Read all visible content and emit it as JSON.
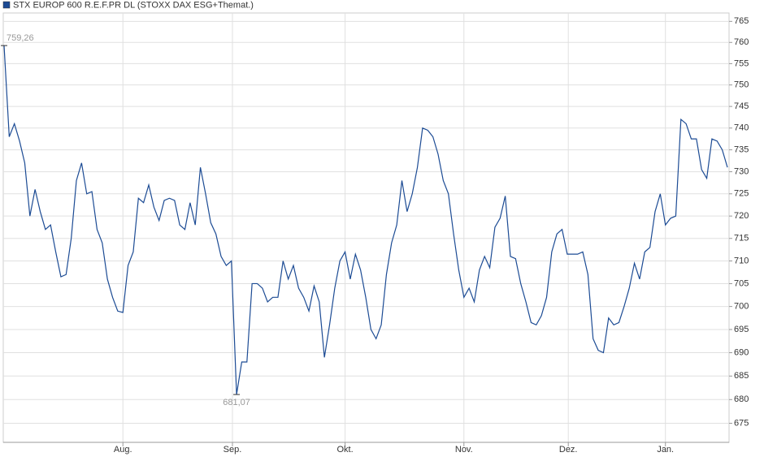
{
  "chart_data": {
    "type": "line",
    "series": [
      {
        "name": "STX EUROP 600 R.E.F.PR DL (STOXX DAX ESG+Themat.)",
        "color": "#1c4b94",
        "values": [
          759.26,
          738,
          741,
          737,
          732,
          720,
          726,
          721,
          717,
          718,
          712,
          706.5,
          707,
          715,
          728,
          732,
          725,
          725.5,
          717,
          714,
          706,
          702,
          699,
          698.7,
          709,
          712,
          724,
          723,
          727,
          722,
          719,
          723.5,
          724,
          723.5,
          718,
          717,
          723,
          718,
          731,
          725,
          718.5,
          716,
          711,
          709,
          710,
          681.07,
          688,
          688,
          705,
          705,
          704,
          701,
          702,
          702,
          710,
          706,
          709,
          704,
          702,
          699,
          704.5,
          701,
          689,
          696,
          704,
          710,
          712,
          706,
          711.5,
          708,
          702,
          695,
          693,
          696,
          707,
          714,
          718,
          728,
          721,
          725,
          731,
          740,
          739.5,
          738,
          734,
          728,
          725,
          716,
          708,
          702,
          704,
          701,
          708,
          711,
          708.5,
          717.5,
          719.5,
          724.5,
          711,
          710.5,
          705,
          701,
          696.5,
          696,
          698,
          702,
          712,
          716,
          717,
          711.5,
          711.5,
          711.5,
          712,
          707,
          693,
          690.5,
          690,
          697.5,
          696,
          696.5,
          700,
          704,
          709.5,
          706,
          712,
          713,
          721,
          725,
          718,
          719.5,
          720,
          742,
          741,
          737.5,
          737.5,
          730.5,
          728.5,
          737.5,
          737,
          735,
          731
        ],
        "value_labels": [
          "759,26",
          null,
          null,
          null,
          null,
          null,
          null,
          null,
          null,
          null,
          null,
          null,
          null,
          null,
          null,
          null,
          null,
          null,
          null,
          null,
          null,
          null,
          null,
          null,
          null,
          null,
          null,
          null,
          null,
          null,
          null,
          null,
          null,
          null,
          null,
          null,
          null,
          null,
          null,
          null,
          null,
          null,
          null,
          null,
          null,
          "681,07",
          null,
          null,
          null,
          null,
          null,
          null,
          null,
          null,
          null,
          null,
          null,
          null,
          null,
          null,
          null,
          null,
          null,
          null,
          null,
          null,
          null,
          null,
          null,
          null,
          null,
          null,
          null,
          null,
          null,
          null,
          null,
          null,
          null,
          null,
          null,
          null,
          null,
          null,
          null,
          null,
          null,
          null,
          null,
          null,
          null,
          null,
          null,
          null,
          null,
          null,
          null,
          null,
          null,
          null,
          null,
          null,
          null,
          null,
          null,
          null,
          null,
          null,
          null,
          null,
          null,
          null,
          null,
          null,
          null,
          null,
          null,
          null,
          null,
          null,
          null,
          null,
          null,
          null,
          null,
          null,
          null,
          null,
          null,
          null,
          null,
          null,
          null,
          null,
          null,
          null,
          null,
          null,
          null,
          null,
          null
        ]
      }
    ],
    "xlim": [
      0,
      140
    ],
    "xticks": [
      {
        "value": 23,
        "label": "Aug."
      },
      {
        "value": 44.2,
        "label": "Sep."
      },
      {
        "value": 66,
        "label": "Okt."
      },
      {
        "value": 89,
        "label": "Nov."
      },
      {
        "value": 109.2,
        "label": "Dez."
      },
      {
        "value": 128,
        "label": "Jan."
      }
    ],
    "ylim": [
      671,
      767
    ],
    "yticks": [
      675,
      680,
      685,
      690,
      695,
      700,
      705,
      710,
      715,
      720,
      725,
      730,
      735,
      740,
      745,
      750,
      755,
      760,
      765
    ],
    "log_scale": true,
    "grid": true,
    "legend": "top-left"
  }
}
